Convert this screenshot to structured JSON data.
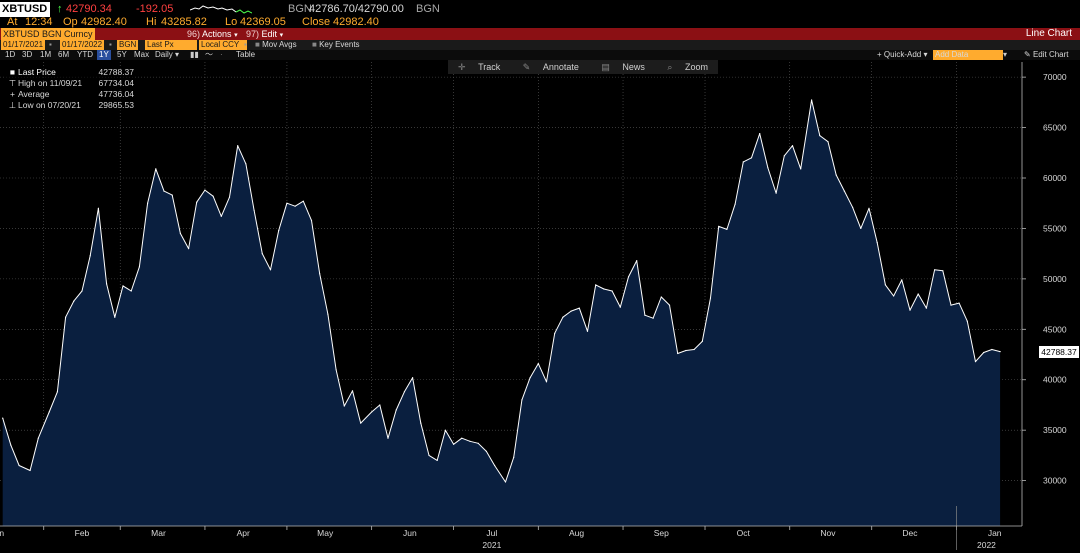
{
  "quote": {
    "ticker": "XBTUSD",
    "last": "42790.34",
    "change": "-192.05",
    "bid_label": "BGN",
    "bid_ask": "42786.70/42790.00",
    "ask_label": "BGN",
    "at_label": "At",
    "time": "12:34",
    "op_label": "Op",
    "open": "42982.40",
    "hi_label": "Hi",
    "high": "43285.82",
    "lo_label": "Lo",
    "low": "42369.05",
    "close_label": "Close",
    "close": "42982.40"
  },
  "titlebar": {
    "security": "XBTUSD BGN Curncy",
    "actions_num": "96)",
    "actions": "Actions",
    "edit_num": "97)",
    "edit": "Edit",
    "chart_type": "Line Chart"
  },
  "params": {
    "start_date": "01/17/2021",
    "end_date": "01/17/2022",
    "source": "BGN",
    "field": "Last Px",
    "currency": "Local CCY",
    "mov_avgs": "Mov Avgs",
    "key_events": "Key Events"
  },
  "periods": {
    "items": [
      "1D",
      "3D",
      "1M",
      "6M",
      "YTD",
      "1Y",
      "5Y",
      "Max"
    ],
    "selected": "1Y",
    "frequency": "Daily",
    "table_label": "Table",
    "quick_add": "Quick-Add",
    "add_data": "Add Data",
    "edit_chart": "Edit Chart"
  },
  "toolbar": {
    "track": "Track",
    "annotate": "Annotate",
    "news": "News",
    "zoom": "Zoom"
  },
  "legend": {
    "last_label": "Last Price",
    "last_value": "42788.37",
    "high_label": "High on 11/09/21",
    "high_value": "67734.04",
    "avg_label": "Average",
    "avg_value": "47736.04",
    "low_label": "Low on 07/20/21",
    "low_value": "29865.53"
  },
  "last_price_tag": "42788.37",
  "chart_data": {
    "type": "area",
    "series": [
      {
        "name": "Last Price",
        "x": [
          "2021-01-17",
          "2021-01-20",
          "2021-01-23",
          "2021-01-27",
          "2021-01-30",
          "2021-02-03",
          "2021-02-06",
          "2021-02-09",
          "2021-02-12",
          "2021-02-15",
          "2021-02-18",
          "2021-02-21",
          "2021-02-24",
          "2021-02-27",
          "2021-03-02",
          "2021-03-05",
          "2021-03-08",
          "2021-03-11",
          "2021-03-14",
          "2021-03-17",
          "2021-03-20",
          "2021-03-23",
          "2021-03-26",
          "2021-03-29",
          "2021-04-01",
          "2021-04-04",
          "2021-04-07",
          "2021-04-10",
          "2021-04-13",
          "2021-04-16",
          "2021-04-19",
          "2021-04-22",
          "2021-04-25",
          "2021-04-28",
          "2021-05-01",
          "2021-05-04",
          "2021-05-07",
          "2021-05-10",
          "2021-05-13",
          "2021-05-16",
          "2021-05-19",
          "2021-05-22",
          "2021-05-25",
          "2021-05-28",
          "2021-06-01",
          "2021-06-04",
          "2021-06-07",
          "2021-06-10",
          "2021-06-13",
          "2021-06-16",
          "2021-06-19",
          "2021-06-22",
          "2021-06-25",
          "2021-06-28",
          "2021-07-01",
          "2021-07-04",
          "2021-07-07",
          "2021-07-10",
          "2021-07-13",
          "2021-07-16",
          "2021-07-20",
          "2021-07-23",
          "2021-07-26",
          "2021-07-29",
          "2021-08-01",
          "2021-08-04",
          "2021-08-07",
          "2021-08-10",
          "2021-08-13",
          "2021-08-16",
          "2021-08-19",
          "2021-08-22",
          "2021-08-25",
          "2021-08-28",
          "2021-08-31",
          "2021-09-03",
          "2021-09-06",
          "2021-09-09",
          "2021-09-12",
          "2021-09-15",
          "2021-09-18",
          "2021-09-21",
          "2021-09-24",
          "2021-09-27",
          "2021-09-30",
          "2021-10-03",
          "2021-10-06",
          "2021-10-09",
          "2021-10-12",
          "2021-10-15",
          "2021-10-18",
          "2021-10-21",
          "2021-10-24",
          "2021-10-27",
          "2021-10-30",
          "2021-11-02",
          "2021-11-05",
          "2021-11-09",
          "2021-11-12",
          "2021-11-15",
          "2021-11-18",
          "2021-11-21",
          "2021-11-24",
          "2021-11-27",
          "2021-11-30",
          "2021-12-03",
          "2021-12-06",
          "2021-12-09",
          "2021-12-12",
          "2021-12-15",
          "2021-12-18",
          "2021-12-21",
          "2021-12-24",
          "2021-12-27",
          "2021-12-30",
          "2022-01-02",
          "2022-01-05",
          "2022-01-08",
          "2022-01-11",
          "2022-01-14",
          "2022-01-17"
        ],
        "values": [
          36200,
          33500,
          31500,
          31000,
          34200,
          36800,
          38800,
          46200,
          47800,
          48800,
          52300,
          57000,
          49500,
          46200,
          49300,
          48800,
          51200,
          57500,
          60900,
          58700,
          58300,
          54500,
          53000,
          57600,
          58800,
          58200,
          56200,
          58100,
          63200,
          61400,
          56800,
          52500,
          50900,
          54800,
          57500,
          57200,
          57700,
          55800,
          50500,
          46500,
          41000,
          37400,
          38900,
          35700,
          36800,
          37500,
          34200,
          37000,
          38800,
          40200,
          35700,
          32500,
          32000,
          35000,
          33600,
          34200,
          33900,
          33700,
          32900,
          31500,
          29865,
          32300,
          38000,
          40200,
          41600,
          39800,
          44600,
          46200,
          46800,
          47100,
          44800,
          49400,
          49000,
          48800,
          47200,
          50200,
          51800,
          46400,
          46100,
          48200,
          47400,
          42600,
          42900,
          43000,
          43800,
          48100,
          55200,
          54900,
          57400,
          61600,
          62000,
          64400,
          61000,
          58500,
          62200,
          63200,
          60900,
          67734,
          64200,
          63600,
          60300,
          58700,
          57100,
          55000,
          57000,
          53600,
          49400,
          48300,
          49900,
          46900,
          48500,
          47100,
          50900,
          50800,
          47400,
          47600,
          45800,
          41800,
          42700,
          43000,
          42788
        ]
      }
    ],
    "x_ticks": [
      "Jan",
      "Feb",
      "Mar",
      "Apr",
      "May",
      "Jun",
      "Jul",
      "Aug",
      "Sep",
      "Oct",
      "Nov",
      "Dec",
      "Jan"
    ],
    "x_year_labels": [
      "2021",
      "2022"
    ],
    "y_ticks": [
      30000,
      35000,
      40000,
      45000,
      50000,
      55000,
      60000,
      65000,
      70000
    ],
    "ylim": [
      25500,
      71500
    ],
    "xlim": [
      "2021-01-16",
      "2022-01-25"
    ],
    "grid": true,
    "legend_position": "top-left",
    "colors": {
      "line": "#ffffff",
      "fill": "#0a1f3f",
      "grid": "#5a5a5a",
      "background": "#000000"
    }
  }
}
